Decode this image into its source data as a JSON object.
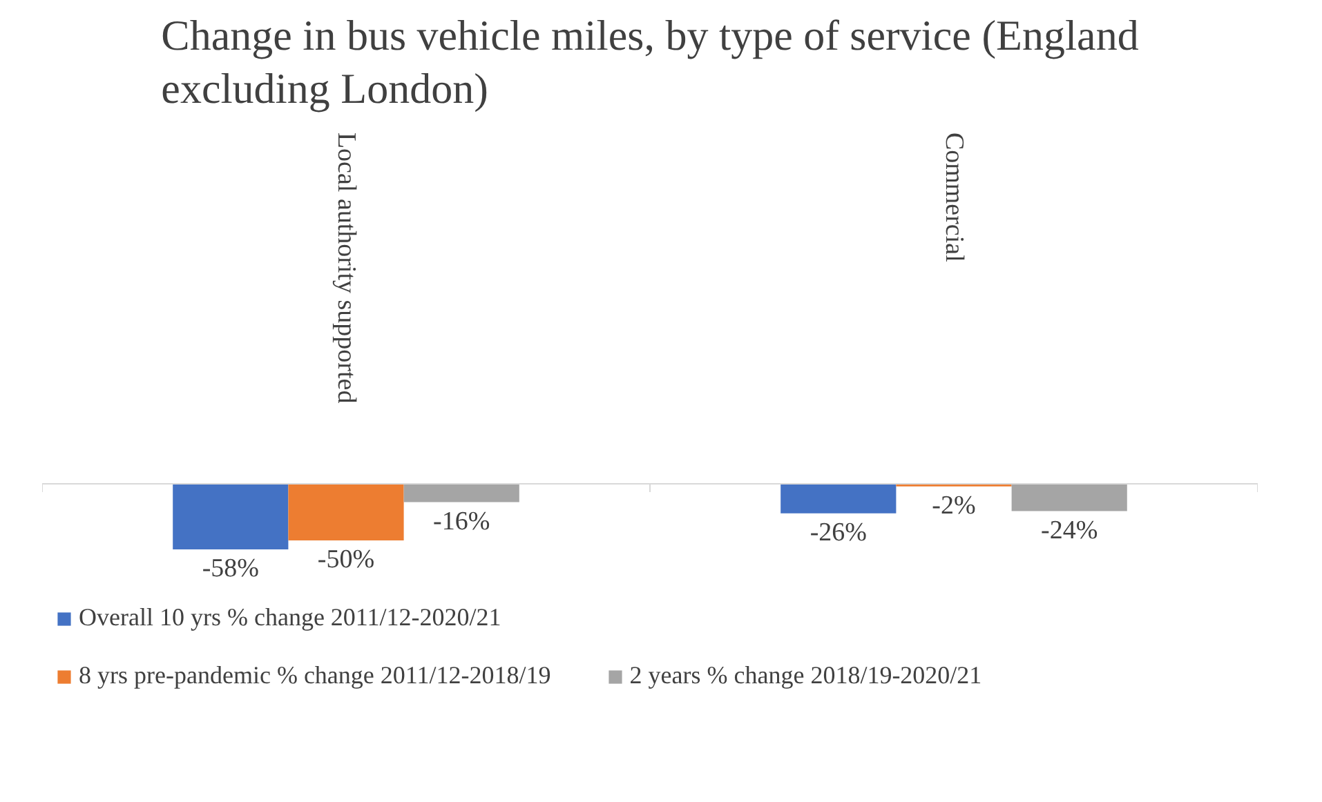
{
  "chart_data": {
    "type": "bar",
    "title": "Change in bus vehicle miles, by type of service (England excluding London)",
    "categories": [
      "Local authority supported",
      "Commercial"
    ],
    "series": [
      {
        "name": "Overall 10 yrs % change 2011/12-2020/21",
        "color": "#4472c4",
        "values": [
          -58,
          -26
        ],
        "value_labels": [
          "-58%",
          "-26%"
        ]
      },
      {
        "name": "8 yrs pre-pandemic % change 2011/12-2018/19",
        "color": "#ed7d31",
        "values": [
          -50,
          -2
        ],
        "value_labels": [
          "-50%",
          "-2%"
        ]
      },
      {
        "name": "2 years % change 2018/19-2020/21",
        "color": "#a5a5a5",
        "values": [
          -16,
          -24
        ],
        "value_labels": [
          "-16%",
          "-24%"
        ]
      }
    ],
    "legend": "bottom"
  }
}
